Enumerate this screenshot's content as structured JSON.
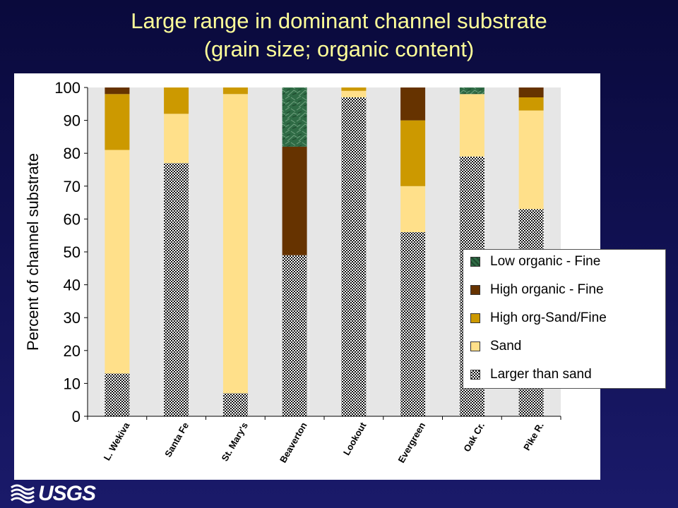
{
  "title": {
    "line1": "Large range in dominant channel substrate",
    "line2": "(grain size; organic content)"
  },
  "logo": {
    "text": "USGS",
    "icon": "usgs-wave-icon"
  },
  "colors": {
    "background": "#0a0a3c",
    "title": "#ffff99",
    "plot_bg": "#e6e6e6",
    "low_organic_fine": "#2f6b45",
    "high_organic_fine": "#663300",
    "high_org_sand_fine": "#cc9900",
    "sand": "#ffe08a",
    "larger_than_sand": "#7a7a7a"
  },
  "chart_data": {
    "type": "bar",
    "stacked": true,
    "title": "",
    "xlabel": "",
    "ylabel": "Percent of channel substrate",
    "ylim": [
      0,
      100
    ],
    "yticks": [
      "0",
      "10",
      "20",
      "30",
      "40",
      "50",
      "60",
      "70",
      "80",
      "90",
      "100"
    ],
    "categories": [
      "L. Wekiva",
      "Santa Fe",
      "St. Mary's",
      "Beaverton",
      "Lookout",
      "Evergreen",
      "Oak Cr.",
      "Pike R."
    ],
    "grid": false,
    "legend_position": "right",
    "series": [
      {
        "name": "Larger than sand",
        "key": "larger_than_sand",
        "values": [
          13,
          77,
          7,
          49,
          97,
          56,
          79,
          63
        ]
      },
      {
        "name": "Sand",
        "key": "sand",
        "values": [
          68,
          15,
          91,
          0,
          2,
          14,
          19,
          30
        ]
      },
      {
        "name": "High org-Sand/Fine",
        "key": "high_org_sand_fine",
        "values": [
          17,
          8,
          2,
          0,
          1,
          20,
          0,
          4
        ]
      },
      {
        "name": "High organic - Fine",
        "key": "high_organic_fine",
        "values": [
          2,
          0,
          0,
          33,
          0,
          10,
          0,
          3
        ]
      },
      {
        "name": "Low organic - Fine",
        "key": "low_organic_fine",
        "values": [
          0,
          0,
          0,
          18,
          0,
          0,
          2,
          0
        ]
      }
    ],
    "legend_order": [
      "low_organic_fine",
      "high_organic_fine",
      "high_org_sand_fine",
      "sand",
      "larger_than_sand"
    ]
  }
}
